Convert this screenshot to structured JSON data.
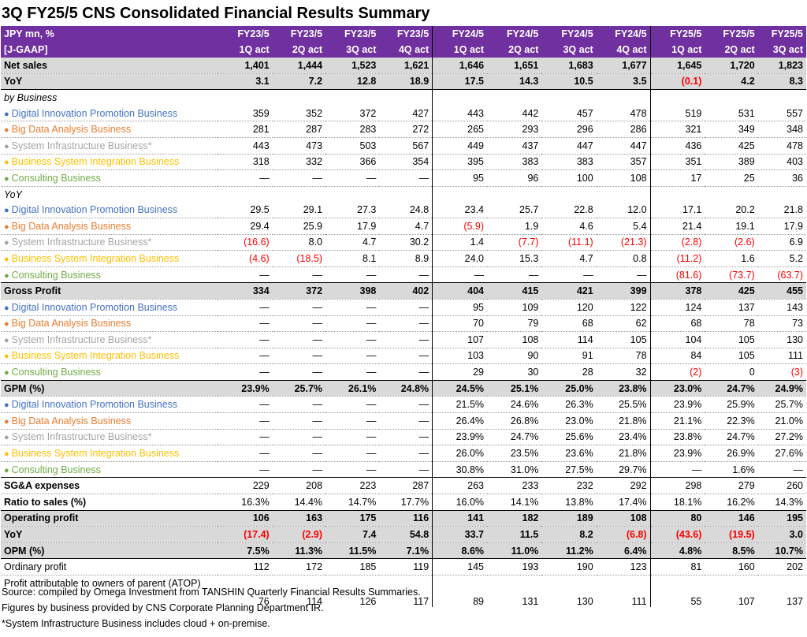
{
  "title": "3Q FY25/5 CNS Consolidated  Financial  Results Summary",
  "header": {
    "label_line1": "JPY mn, %",
    "label_line2": "[J-GAAP]",
    "periods": [
      {
        "fy": "FY23/5",
        "q": "1Q act"
      },
      {
        "fy": "FY23/5",
        "q": "2Q act"
      },
      {
        "fy": "FY23/5",
        "q": "3Q act"
      },
      {
        "fy": "FY23/5",
        "q": "4Q act"
      },
      {
        "fy": "FY24/5",
        "q": "1Q act"
      },
      {
        "fy": "FY24/5",
        "q": "2Q act"
      },
      {
        "fy": "FY24/5",
        "q": "3Q act"
      },
      {
        "fy": "FY24/5",
        "q": "4Q act"
      },
      {
        "fy": "FY25/5",
        "q": "1Q act"
      },
      {
        "fy": "FY25/5",
        "q": "2Q act"
      },
      {
        "fy": "FY25/5",
        "q": "3Q act"
      }
    ]
  },
  "rows": [
    {
      "label": "Net sales",
      "style": "gray",
      "values": [
        "1,401",
        "1,444",
        "1,523",
        "1,621",
        "1,646",
        "1,651",
        "1,683",
        "1,677",
        "1,645",
        "1,720",
        "1,823"
      ]
    },
    {
      "label": "YoY",
      "style": "gray",
      "values": [
        "3.1",
        "7.2",
        "12.8",
        "18.9",
        "17.5",
        "14.3",
        "10.5",
        "3.5",
        "(0.1)",
        "4.2",
        "8.3"
      ]
    },
    {
      "label": "by Business",
      "style": "section",
      "values": [
        "",
        "",
        "",
        "",
        "",
        "",
        "",
        "",
        "",
        "",
        ""
      ]
    },
    {
      "label": "Digital Innovation Promotion Business",
      "biz": "digital",
      "values": [
        "359",
        "352",
        "372",
        "427",
        "443",
        "442",
        "457",
        "478",
        "519",
        "531",
        "557"
      ]
    },
    {
      "label": "Big Data Analysis Business",
      "biz": "bigdata",
      "values": [
        "281",
        "287",
        "283",
        "272",
        "265",
        "293",
        "296",
        "286",
        "321",
        "349",
        "348"
      ]
    },
    {
      "label": "System Infrastructure Business*",
      "biz": "system",
      "values": [
        "443",
        "473",
        "503",
        "567",
        "449",
        "437",
        "447",
        "447",
        "436",
        "425",
        "478"
      ]
    },
    {
      "label": "Business System Integration Business",
      "biz": "bsi",
      "values": [
        "318",
        "332",
        "366",
        "354",
        "395",
        "383",
        "383",
        "357",
        "351",
        "389",
        "403"
      ]
    },
    {
      "label": "Consulting Business",
      "biz": "consult",
      "values": [
        "—",
        "—",
        "—",
        "—",
        "95",
        "96",
        "100",
        "108",
        "17",
        "25",
        "36"
      ]
    },
    {
      "label": "YoY",
      "style": "section",
      "values": [
        "",
        "",
        "",
        "",
        "",
        "",
        "",
        "",
        "",
        "",
        ""
      ]
    },
    {
      "label": "Digital Innovation Promotion Business",
      "biz": "digital",
      "values": [
        "29.5",
        "29.1",
        "27.3",
        "24.8",
        "23.4",
        "25.7",
        "22.8",
        "12.0",
        "17.1",
        "20.2",
        "21.8"
      ]
    },
    {
      "label": "Big Data Analysis Business",
      "biz": "bigdata",
      "values": [
        "29.4",
        "25.9",
        "17.9",
        "4.7",
        "(5.9)",
        "1.9",
        "4.6",
        "5.4",
        "21.4",
        "19.1",
        "17.9"
      ]
    },
    {
      "label": "System Infrastructure Business*",
      "biz": "system",
      "values": [
        "(16.6)",
        "8.0",
        "4.7",
        "30.2",
        "1.4",
        "(7.7)",
        "(11.1)",
        "(21.3)",
        "(2.8)",
        "(2.6)",
        "6.9"
      ]
    },
    {
      "label": "Business System Integration Business",
      "biz": "bsi",
      "values": [
        "(4.6)",
        "(18.5)",
        "8.1",
        "8.9",
        "24.0",
        "15.3",
        "4.7",
        "0.8",
        "(11.2)",
        "1.6",
        "5.2"
      ]
    },
    {
      "label": "Consulting Business",
      "biz": "consult",
      "values": [
        "—",
        "—",
        "—",
        "—",
        "—",
        "—",
        "—",
        "—",
        "(81.6)",
        "(73.7)",
        "(63.7)"
      ]
    },
    {
      "label": "Gross Profit",
      "style": "gray",
      "values": [
        "334",
        "372",
        "398",
        "402",
        "404",
        "415",
        "421",
        "399",
        "378",
        "425",
        "455"
      ]
    },
    {
      "label": "Digital Innovation Promotion Business",
      "biz": "digital",
      "values": [
        "—",
        "—",
        "—",
        "—",
        "95",
        "109",
        "120",
        "122",
        "124",
        "137",
        "143"
      ]
    },
    {
      "label": "Big Data Analysis Business",
      "biz": "bigdata",
      "values": [
        "—",
        "—",
        "—",
        "—",
        "70",
        "79",
        "68",
        "62",
        "68",
        "78",
        "73"
      ]
    },
    {
      "label": "System Infrastructure Business*",
      "biz": "system",
      "values": [
        "—",
        "—",
        "—",
        "—",
        "107",
        "108",
        "114",
        "105",
        "104",
        "105",
        "130"
      ]
    },
    {
      "label": "Business System Integration Business",
      "biz": "bsi",
      "values": [
        "—",
        "—",
        "—",
        "—",
        "103",
        "90",
        "91",
        "78",
        "84",
        "105",
        "111"
      ]
    },
    {
      "label": "Consulting Business",
      "biz": "consult",
      "values": [
        "—",
        "—",
        "—",
        "—",
        "29",
        "30",
        "28",
        "32",
        "(2)",
        "0",
        "(3)"
      ]
    },
    {
      "label": "GPM (%)",
      "style": "gray",
      "values": [
        "23.9%",
        "25.7%",
        "26.1%",
        "24.8%",
        "24.5%",
        "25.1%",
        "25.0%",
        "23.8%",
        "23.0%",
        "24.7%",
        "24.9%"
      ]
    },
    {
      "label": "Digital Innovation Promotion Business",
      "biz": "digital",
      "values": [
        "—",
        "—",
        "—",
        "—",
        "21.5%",
        "24.6%",
        "26.3%",
        "25.5%",
        "23.9%",
        "25.9%",
        "25.7%"
      ]
    },
    {
      "label": "Big Data Analysis Business",
      "biz": "bigdata",
      "values": [
        "—",
        "—",
        "—",
        "—",
        "26.4%",
        "26.8%",
        "23.0%",
        "21.8%",
        "21.1%",
        "22.3%",
        "21.0%"
      ]
    },
    {
      "label": "System Infrastructure Business*",
      "biz": "system",
      "values": [
        "—",
        "—",
        "—",
        "—",
        "23.9%",
        "24.7%",
        "25.6%",
        "23.4%",
        "23.8%",
        "24.7%",
        "27.2%"
      ]
    },
    {
      "label": "Business System Integration Business",
      "biz": "bsi",
      "values": [
        "—",
        "—",
        "—",
        "—",
        "26.0%",
        "23.5%",
        "23.6%",
        "21.8%",
        "23.9%",
        "26.9%",
        "27.6%"
      ]
    },
    {
      "label": "Consulting Business",
      "biz": "consult",
      "values": [
        "—",
        "—",
        "—",
        "—",
        "30.8%",
        "31.0%",
        "27.5%",
        "29.7%",
        "—",
        "1.6%",
        "—"
      ]
    },
    {
      "label": "SG&A expenses",
      "style": "boldlabel",
      "values": [
        "229",
        "208",
        "223",
        "287",
        "263",
        "233",
        "232",
        "292",
        "298",
        "279",
        "260"
      ]
    },
    {
      "label": "Ratio to sales (%)",
      "style": "boldlabel",
      "values": [
        "16.3%",
        "14.4%",
        "14.7%",
        "17.7%",
        "16.0%",
        "14.1%",
        "13.8%",
        "17.4%",
        "18.1%",
        "16.2%",
        "14.3%"
      ]
    },
    {
      "label": "Operating profit",
      "style": "gray",
      "values": [
        "106",
        "163",
        "175",
        "116",
        "141",
        "182",
        "189",
        "108",
        "80",
        "146",
        "195"
      ]
    },
    {
      "label": "YoY",
      "style": "gray",
      "values": [
        "(17.4)",
        "(2.9)",
        "7.4",
        "54.8",
        "33.7",
        "11.5",
        "8.2",
        "(6.8)",
        "(43.6)",
        "(19.5)",
        "3.0"
      ]
    },
    {
      "label": "OPM (%)",
      "style": "gray",
      "values": [
        "7.5%",
        "11.3%",
        "11.5%",
        "7.1%",
        "8.6%",
        "11.0%",
        "11.2%",
        "6.4%",
        "4.8%",
        "8.5%",
        "10.7%"
      ]
    },
    {
      "label": "Ordinary profit",
      "values": [
        "112",
        "172",
        "185",
        "119",
        "145",
        "193",
        "190",
        "123",
        "81",
        "160",
        "202"
      ]
    },
    {
      "label": "Profit attributable to owners of parent (ATOP)",
      "style": "tall",
      "values": [
        "76",
        "114",
        "126",
        "117",
        "89",
        "131",
        "130",
        "111",
        "55",
        "107",
        "137"
      ]
    }
  ],
  "notes": [
    "Source: compiled by Omega Investment from TANSHIN Quarterly Financial Results Summaries.",
    "Figures by business provided by CNS Corporate Planning Department IR.",
    "*System Infrastructure Business includes cloud + on-premise."
  ],
  "bullet_glyph": "●",
  "colors": {
    "header_bg": "#7030a0",
    "highlight_bg": "#d9d9d9",
    "negative": "#ff0000",
    "digital": "#4472c4",
    "bigdata": "#ed7d31",
    "system": "#a5a5a5",
    "bsi": "#ffc000",
    "consult": "#70ad47"
  }
}
